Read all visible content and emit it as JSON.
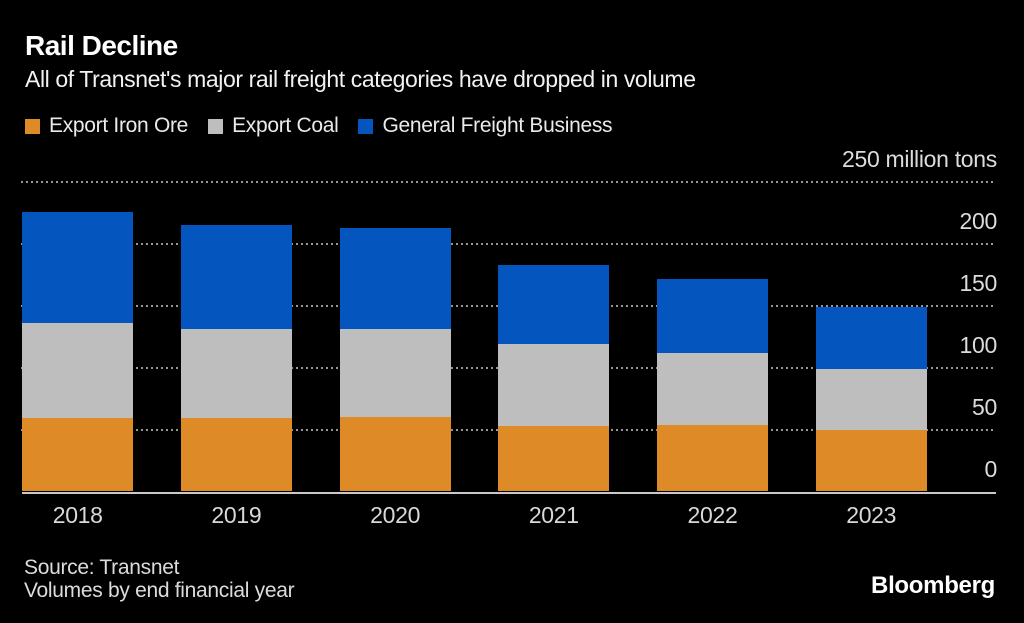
{
  "header": {
    "title": "Rail Decline",
    "subtitle": "All of Transnet's major rail freight categories have dropped in volume"
  },
  "footer": {
    "source_line1": "Source: Transnet",
    "source_line2": "Volumes by end financial year",
    "brand": "Bloomberg"
  },
  "colors": {
    "background": "#000000",
    "export_iron_ore": "#DE8A27",
    "export_coal": "#BEBEBE",
    "general_freight": "#0455BD",
    "gridline": "#969696",
    "axis_line": "#C9C9C9",
    "tick_label": "#DCDCDC",
    "title_text": "#FFFFFF"
  },
  "chart_data": {
    "type": "bar",
    "stacked": true,
    "title": "Rail Decline",
    "subtitle": "All of Transnet's major rail freight categories have dropped in volume",
    "categories": [
      "2018",
      "2019",
      "2020",
      "2021",
      "2022",
      "2023"
    ],
    "series": [
      {
        "name": "Export Iron Ore",
        "color": "#DE8A27",
        "values": [
          59,
          59,
          60,
          53,
          54,
          50
        ]
      },
      {
        "name": "Export Coal",
        "color": "#BEBEBE",
        "values": [
          77,
          72,
          71,
          66,
          58,
          49
        ]
      },
      {
        "name": "General Freight Business",
        "color": "#0455BD",
        "values": [
          90,
          84,
          82,
          64,
          60,
          50
        ]
      }
    ],
    "stack_totals": [
      226,
      215,
      213,
      183,
      172,
      149
    ],
    "ylabel": "million tons",
    "ylim": [
      0,
      250
    ],
    "yticks": [
      {
        "value": 0,
        "label": "0"
      },
      {
        "value": 50,
        "label": "50"
      },
      {
        "value": 100,
        "label": "100"
      },
      {
        "value": 150,
        "label": "150"
      },
      {
        "value": 200,
        "label": "200"
      },
      {
        "value": 250,
        "label": "250 million tons"
      }
    ],
    "grid": "horizontal dotted",
    "legend_position": "top-left",
    "axis_side": "right",
    "xlabel": ""
  }
}
